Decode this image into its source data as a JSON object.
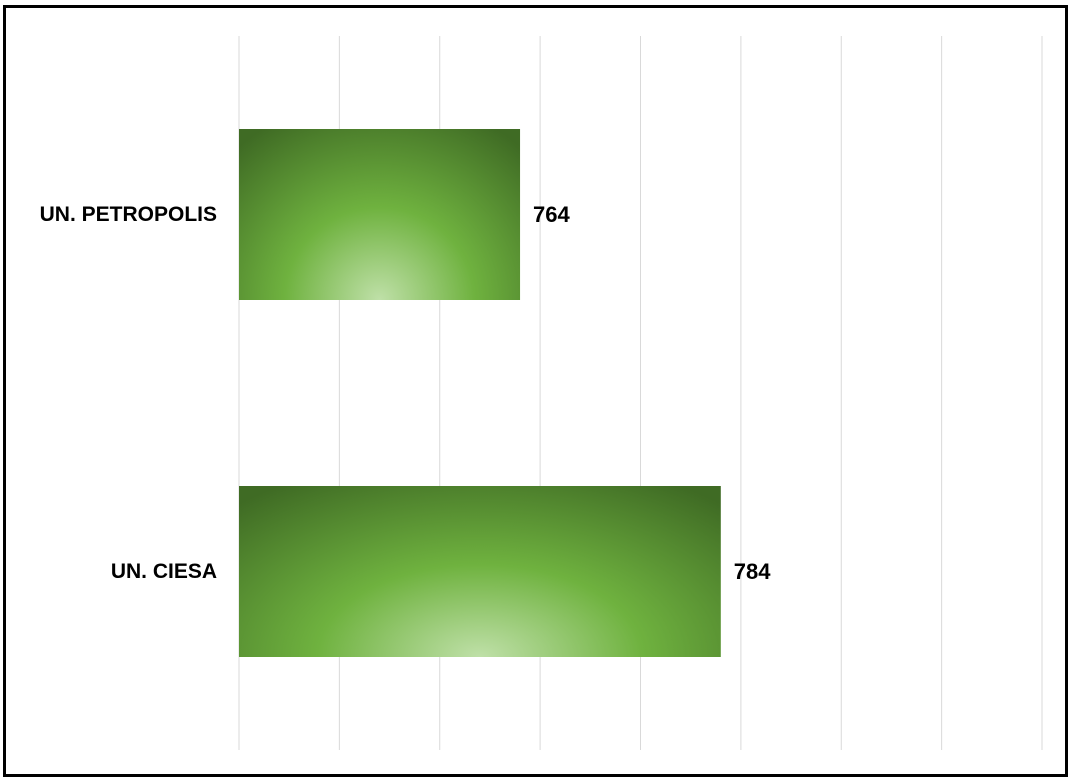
{
  "chart_data": {
    "type": "bar",
    "orientation": "horizontal",
    "categories": [
      "UN. PETROPOLIS",
      "UN. CIESA"
    ],
    "values": [
      764,
      784
    ],
    "title": "",
    "xlabel": "",
    "ylabel": "",
    "xlim": [
      736,
      816
    ],
    "grid": true,
    "legend": "none",
    "bar_color": "#6fb23f",
    "bar_edge_color": "#3f6b24",
    "bar_highlight_color": "#bfe0a8"
  }
}
